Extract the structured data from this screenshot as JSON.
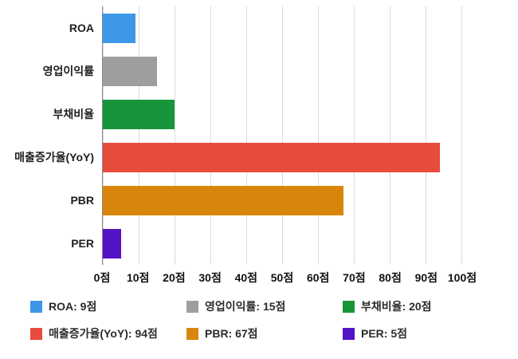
{
  "chart_data": {
    "type": "bar",
    "orientation": "horizontal",
    "title": "",
    "xlabel": "",
    "ylabel": "",
    "unit": "점",
    "categories": [
      "ROA",
      "영업이익률",
      "부채비율",
      "매출증가율(YoY)",
      "PBR",
      "PER"
    ],
    "values": [
      9,
      15,
      20,
      94,
      67,
      5
    ],
    "colors": [
      "#3d97e8",
      "#9e9e9e",
      "#17953b",
      "#e74c3c",
      "#d8860b",
      "#5313c6"
    ],
    "xlim": [
      0,
      100
    ],
    "grid": true,
    "tick_labels": [
      "0점",
      "10점",
      "20점",
      "30점",
      "40점",
      "50점",
      "60점",
      "70점",
      "80점",
      "90점",
      "100점"
    ],
    "legend_position": "bottom",
    "legend": [
      {
        "label": "ROA: 9점"
      },
      {
        "label": "영업이익률: 15점"
      },
      {
        "label": "부채비율: 20점"
      },
      {
        "label": "매출증가율(YoY): 94점"
      },
      {
        "label": "PBR: 67점"
      },
      {
        "label": "PER: 5점"
      }
    ]
  }
}
